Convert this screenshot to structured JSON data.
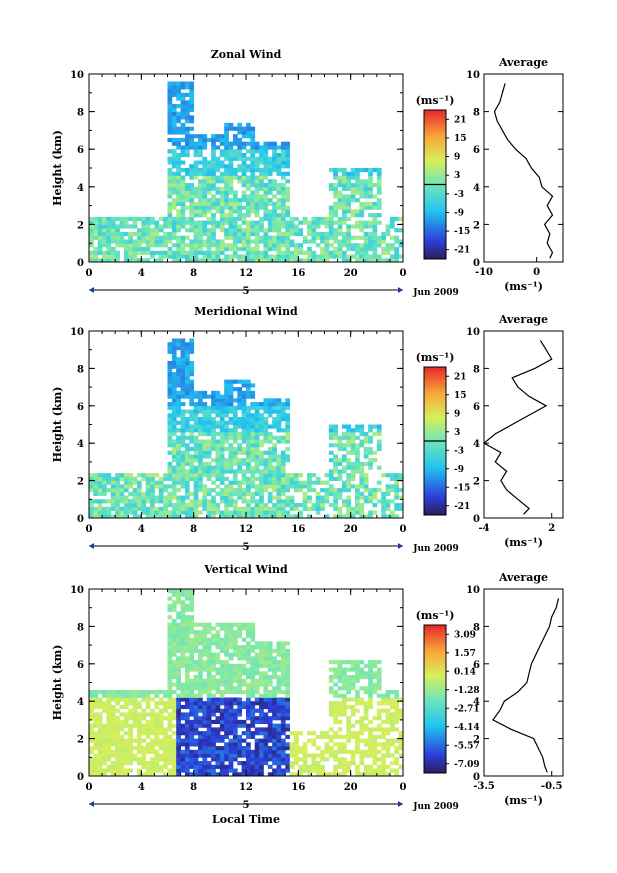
{
  "chart_data": [
    {
      "type": "heatmap",
      "title": "Zonal Wind",
      "ylabel": "Height (km)",
      "xlabel": "",
      "x_ticks": [
        "0",
        "4",
        "8",
        "12",
        "16",
        "20",
        "0"
      ],
      "y_ticks": [
        "0",
        "2",
        "4",
        "6",
        "8",
        "10"
      ],
      "xlim": [
        0,
        24
      ],
      "ylim": [
        0,
        10
      ],
      "day_label": "5",
      "month_label": "Jun 2009",
      "colorbar": {
        "unit_label": "(ms⁻¹)",
        "ticks": [
          "21",
          "15",
          "9",
          "3",
          "-3",
          "-9",
          "-15",
          "-21"
        ],
        "range": [
          -24,
          24
        ]
      },
      "profile": {
        "title": "Average",
        "x_ticks": [
          "-10",
          "0"
        ],
        "xlim": [
          -10,
          5
        ],
        "y_ticks": [
          "0",
          "2",
          "4",
          "6",
          "8",
          "10"
        ],
        "unit_label": "(ms⁻¹)",
        "heights": [
          0.2,
          0.5,
          1.0,
          1.5,
          2.0,
          2.5,
          3.0,
          3.5,
          4.0,
          4.5,
          5.0,
          5.5,
          6.0,
          6.5,
          7.0,
          7.5,
          8.0,
          8.5,
          9.0,
          9.5
        ],
        "values": [
          2.5,
          3,
          2,
          2.5,
          1.5,
          3,
          2,
          3,
          1,
          0.5,
          -1,
          -2,
          -4,
          -5.5,
          -6.5,
          -7.5,
          -8,
          -7,
          -6.5,
          -6
        ]
      }
    },
    {
      "type": "heatmap",
      "title": "Meridional Wind",
      "ylabel": "Height (km)",
      "xlabel": "",
      "x_ticks": [
        "0",
        "4",
        "8",
        "12",
        "16",
        "20",
        "0"
      ],
      "y_ticks": [
        "0",
        "2",
        "4",
        "6",
        "8",
        "10"
      ],
      "xlim": [
        0,
        24
      ],
      "ylim": [
        0,
        10
      ],
      "day_label": "5",
      "month_label": "Jun 2009",
      "colorbar": {
        "unit_label": "(ms⁻¹)",
        "ticks": [
          "21",
          "15",
          "9",
          "3",
          "-3",
          "-9",
          "-15",
          "-21"
        ],
        "range": [
          -24,
          24
        ]
      },
      "profile": {
        "title": "Average",
        "x_ticks": [
          "-4",
          "2"
        ],
        "xlim": [
          -4,
          3
        ],
        "y_ticks": [
          "0",
          "2",
          "4",
          "6",
          "8",
          "10"
        ],
        "unit_label": "(ms⁻¹)",
        "heights": [
          0.2,
          0.5,
          1.0,
          1.5,
          2.0,
          2.5,
          3.0,
          3.5,
          4.0,
          4.5,
          5.0,
          5.5,
          6.0,
          6.5,
          7.0,
          7.5,
          8.0,
          8.5,
          9.0,
          9.5
        ],
        "values": [
          -0.5,
          0,
          -1,
          -2,
          -2.5,
          -2,
          -3,
          -2.5,
          -4,
          -3,
          -1.5,
          0,
          1.5,
          0,
          -1,
          -1.5,
          0.5,
          2,
          1.5,
          1
        ]
      }
    },
    {
      "type": "heatmap",
      "title": "Vertical Wind",
      "ylabel": "Height (km)",
      "xlabel": "Local Time",
      "x_ticks": [
        "0",
        "4",
        "8",
        "12",
        "16",
        "20",
        "0"
      ],
      "y_ticks": [
        "0",
        "2",
        "4",
        "6",
        "8",
        "10"
      ],
      "xlim": [
        0,
        24
      ],
      "ylim": [
        0,
        10
      ],
      "day_label": "5",
      "month_label": "Jun 2009",
      "colorbar": {
        "unit_label": "(ms⁻¹)",
        "ticks": [
          "3.09",
          "1.57",
          "0.14",
          "-1.28",
          "-2.71",
          "-4.14",
          "-5.57",
          "-7.09"
        ],
        "range": [
          -7.8,
          3.8
        ]
      },
      "profile": {
        "title": "Average",
        "x_ticks": [
          "-3.5",
          "-0.5"
        ],
        "xlim": [
          -3.5,
          0
        ],
        "y_ticks": [
          "0",
          "2",
          "4",
          "6",
          "8",
          "10"
        ],
        "unit_label": "(ms⁻¹)",
        "heights": [
          0.2,
          0.5,
          1.0,
          1.5,
          2.0,
          2.5,
          3.0,
          3.5,
          4.0,
          4.5,
          5.0,
          5.5,
          6.0,
          6.5,
          7.0,
          7.5,
          8.0,
          8.5,
          9.0,
          9.5
        ],
        "values": [
          -0.7,
          -0.8,
          -0.9,
          -1.1,
          -1.3,
          -2.3,
          -3.1,
          -2.8,
          -2.6,
          -2.0,
          -1.6,
          -1.5,
          -1.4,
          -1.2,
          -1.0,
          -0.8,
          -0.6,
          -0.5,
          -0.3,
          -0.2
        ]
      }
    }
  ]
}
